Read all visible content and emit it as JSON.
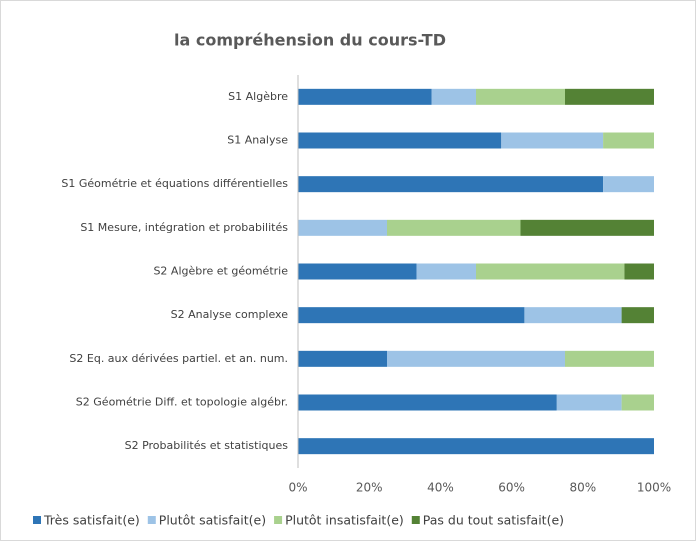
{
  "chart_data": {
    "type": "stacked-bar-horizontal",
    "title": "la compréhension du cours-TD",
    "categories": [
      "S1 Algèbre",
      "S1 Analyse",
      "S1 Géométrie et équations différentielles",
      "S1 Mesure, intégration et probabilités",
      "S2 Algèbre et géométrie",
      "S2 Analyse complexe",
      "S2 Eq. aux dérivées partiel. et an. num.",
      "S2 Géométrie Diff. et topologie algébr.",
      "S2 Probabilités et statistiques"
    ],
    "series": [
      {
        "name": "Très satisfait(e)",
        "color": "#2e75b6",
        "values": [
          37.5,
          57.1,
          85.7,
          0,
          33.3,
          63.6,
          25,
          72.7,
          100
        ]
      },
      {
        "name": "Plutôt satisfait(e)",
        "color": "#9dc3e6",
        "values": [
          12.5,
          28.6,
          14.3,
          25,
          16.7,
          27.3,
          50,
          18.2,
          0
        ]
      },
      {
        "name": "Plutôt insatisfait(e)",
        "color": "#a9d18e",
        "values": [
          25,
          14.3,
          0,
          37.5,
          41.7,
          0,
          25,
          9.1,
          0
        ]
      },
      {
        "name": "Pas du tout satisfait(e)",
        "color": "#548235",
        "values": [
          25,
          0,
          0,
          37.5,
          8.3,
          9.1,
          0,
          0,
          0
        ]
      }
    ],
    "xlim": [
      0,
      100
    ],
    "xticks": [
      {
        "value": 0,
        "label": "0%"
      },
      {
        "value": 20,
        "label": "20%"
      },
      {
        "value": 40,
        "label": "40%"
      },
      {
        "value": 60,
        "label": "60%"
      },
      {
        "value": 80,
        "label": "80%"
      },
      {
        "value": 100,
        "label": "100%"
      }
    ],
    "grid": false,
    "legend": "bottom"
  }
}
